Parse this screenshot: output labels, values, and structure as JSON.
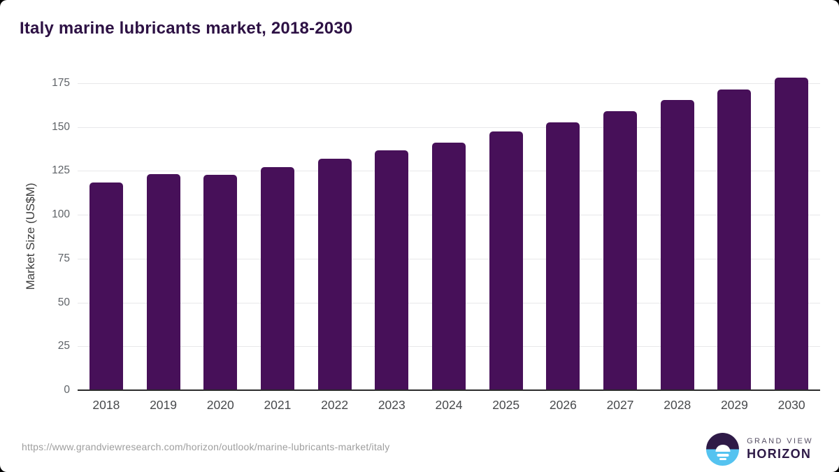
{
  "page": {
    "title": "Italy marine lubricants market, 2018-2030"
  },
  "chart_data": {
    "type": "bar",
    "title": "Italy marine lubricants market, 2018-2030",
    "categories": [
      "2018",
      "2019",
      "2020",
      "2021",
      "2022",
      "2023",
      "2024",
      "2025",
      "2026",
      "2027",
      "2028",
      "2029",
      "2030"
    ],
    "values": [
      118.3,
      123.0,
      122.6,
      127.2,
      132.1,
      136.9,
      141.1,
      147.5,
      152.5,
      159.2,
      165.3,
      171.4,
      178.2
    ],
    "xlabel": "",
    "ylabel": "Market Size (US$M)",
    "ylim": [
      0,
      175
    ],
    "yticks": [
      0,
      25,
      50,
      75,
      100,
      125,
      150,
      175
    ],
    "grid": true,
    "legend": "none",
    "bar_color": "#471059"
  },
  "footer": {
    "source_url": "https://www.grandviewresearch.com/horizon/outlook/marine-lubricants-market/italy",
    "brand": {
      "top": "GRAND VIEW",
      "bottom": "HORIZON"
    }
  },
  "colors": {
    "title": "#2d1144",
    "bar": "#471059",
    "axis_line": "#2b2b2b",
    "gridline": "#e8e8ea",
    "y_tick_label": "#5f6368",
    "x_tick_label": "#47494c",
    "y_axis_title": "#3e3e3e",
    "source_url": "#9e9e9e",
    "logo_dark_purple": "#2e1a47",
    "logo_light_blue": "#55c3f0"
  }
}
